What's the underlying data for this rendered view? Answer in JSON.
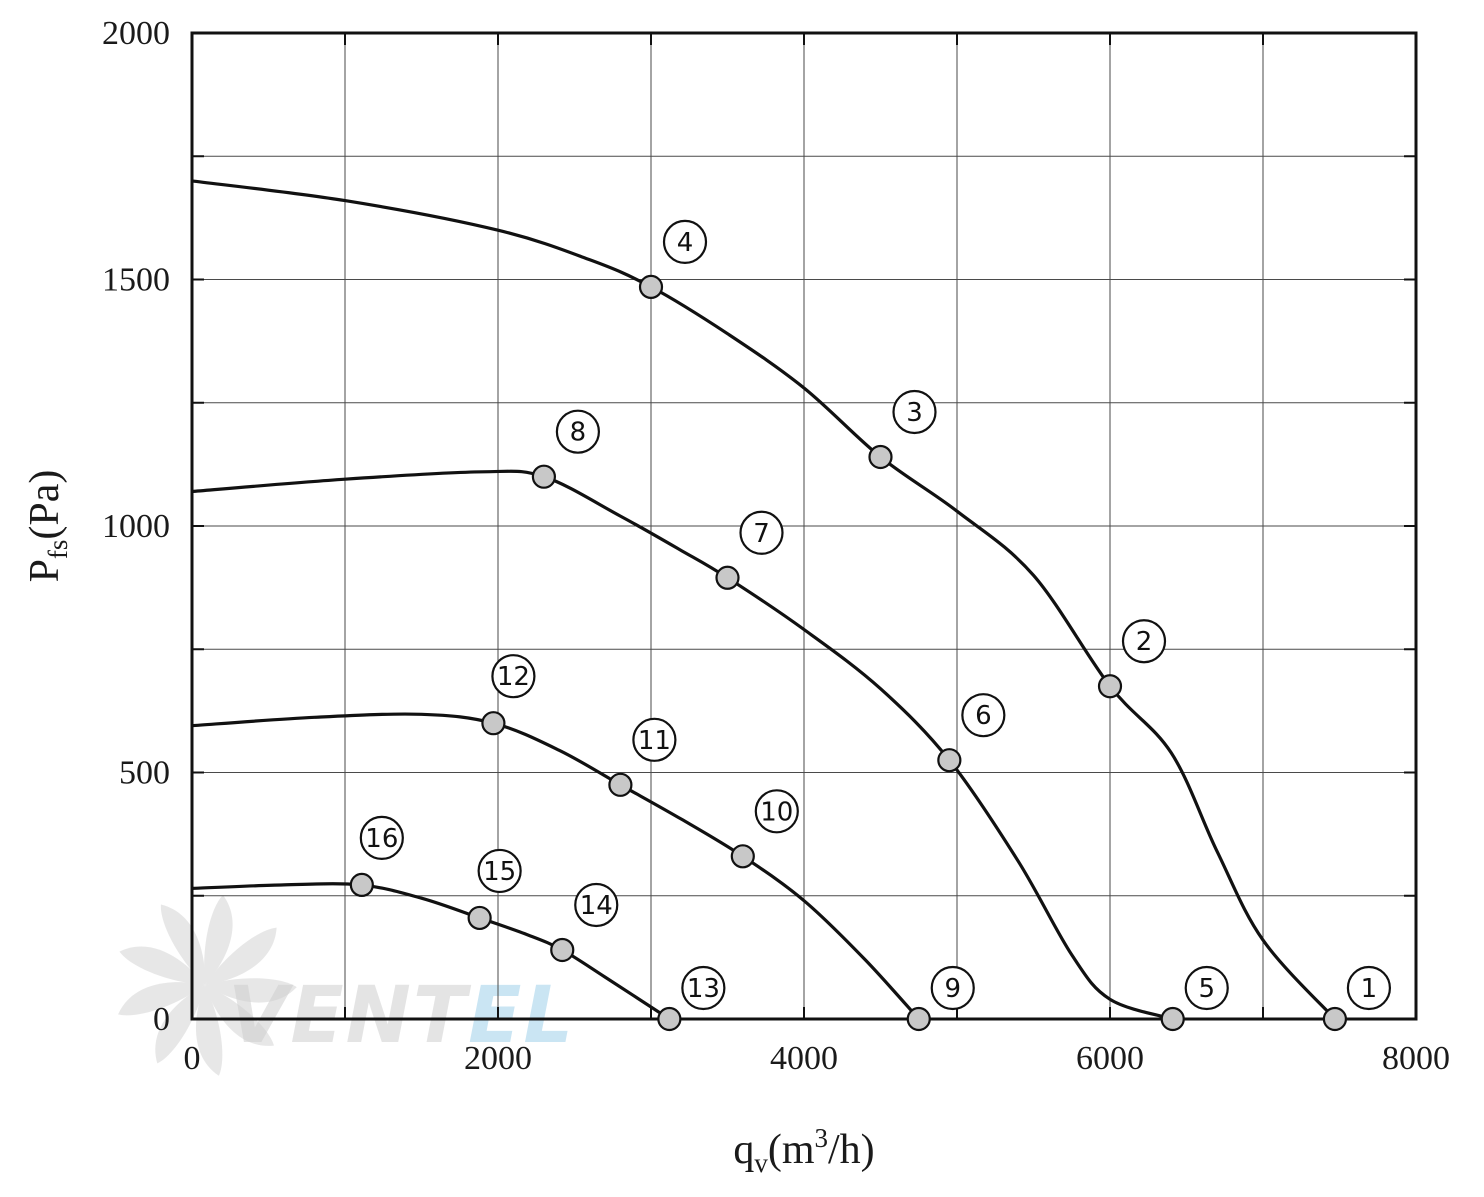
{
  "chart_data": {
    "type": "line",
    "xlabel": {
      "base": "q",
      "sub": "v",
      "unit_pre": "(m",
      "unit_sup": "3",
      "unit_post": "/h)"
    },
    "ylabel": {
      "base": "P",
      "sub": "fs",
      "unit": "(Pa)"
    },
    "xlim": [
      0,
      8000
    ],
    "ylim": [
      0,
      2000
    ],
    "x_ticks": [
      0,
      2000,
      4000,
      6000,
      8000
    ],
    "y_ticks": [
      0,
      500,
      1000,
      1500,
      2000
    ],
    "x_minor_grid": [
      1000,
      3000,
      5000,
      7000
    ],
    "y_minor_grid": [
      250,
      750,
      1250,
      1750
    ],
    "grid": true,
    "legend": "none",
    "series": [
      {
        "curve": [
          [
            0,
            1700
          ],
          [
            1000,
            1660
          ],
          [
            2000,
            1600
          ],
          [
            2600,
            1540
          ],
          [
            3000,
            1485
          ],
          [
            3500,
            1390
          ],
          [
            4000,
            1280
          ],
          [
            4500,
            1140
          ],
          [
            5000,
            1030
          ],
          [
            5500,
            900
          ],
          [
            6000,
            675
          ],
          [
            6400,
            540
          ],
          [
            6700,
            340
          ],
          [
            7000,
            160
          ],
          [
            7470,
            0
          ]
        ],
        "points": [
          {
            "label": "1",
            "x": 7470,
            "y": 0,
            "dir": "ne"
          },
          {
            "label": "2",
            "x": 6000,
            "y": 675,
            "dir": "ne"
          },
          {
            "label": "3",
            "x": 4500,
            "y": 1140,
            "dir": "ne"
          },
          {
            "label": "4",
            "x": 3000,
            "y": 1485,
            "dir": "ne"
          }
        ]
      },
      {
        "curve": [
          [
            0,
            1070
          ],
          [
            1000,
            1095
          ],
          [
            1900,
            1110
          ],
          [
            2300,
            1100
          ],
          [
            2800,
            1020
          ],
          [
            3200,
            950
          ],
          [
            3500,
            895
          ],
          [
            4000,
            790
          ],
          [
            4500,
            670
          ],
          [
            4950,
            525
          ],
          [
            5400,
            320
          ],
          [
            5750,
            130
          ],
          [
            6000,
            40
          ],
          [
            6410,
            0
          ]
        ],
        "points": [
          {
            "label": "5",
            "x": 6410,
            "y": 0,
            "dir": "ne"
          },
          {
            "label": "6",
            "x": 4950,
            "y": 525,
            "dir": "ne"
          },
          {
            "label": "7",
            "x": 3500,
            "y": 895,
            "dir": "ne"
          },
          {
            "label": "8",
            "x": 2300,
            "y": 1100,
            "dir": "ne"
          }
        ]
      },
      {
        "curve": [
          [
            0,
            595
          ],
          [
            800,
            612
          ],
          [
            1500,
            618
          ],
          [
            1970,
            600
          ],
          [
            2400,
            545
          ],
          [
            2800,
            475
          ],
          [
            3200,
            405
          ],
          [
            3600,
            330
          ],
          [
            4000,
            240
          ],
          [
            4400,
            120
          ],
          [
            4750,
            0
          ]
        ],
        "points": [
          {
            "label": "9",
            "x": 4750,
            "y": 0,
            "dir": "ne"
          },
          {
            "label": "10",
            "x": 3600,
            "y": 330,
            "dir": "ne"
          },
          {
            "label": "11",
            "x": 2800,
            "y": 475,
            "dir": "ne"
          },
          {
            "label": "12",
            "x": 1970,
            "y": 600,
            "dir": "n"
          }
        ]
      },
      {
        "curve": [
          [
            0,
            265
          ],
          [
            600,
            272
          ],
          [
            1100,
            272
          ],
          [
            1500,
            245
          ],
          [
            1880,
            205
          ],
          [
            2200,
            170
          ],
          [
            2420,
            140
          ],
          [
            2700,
            85
          ],
          [
            3120,
            0
          ]
        ],
        "points": [
          {
            "label": "13",
            "x": 3120,
            "y": 0,
            "dir": "ne"
          },
          {
            "label": "14",
            "x": 2420,
            "y": 140,
            "dir": "ne"
          },
          {
            "label": "15",
            "x": 1880,
            "y": 205,
            "dir": "n"
          },
          {
            "label": "16",
            "x": 1110,
            "y": 272,
            "dir": "n"
          }
        ]
      }
    ]
  },
  "watermark": {
    "brand": "VENTEL",
    "text_color": "#cfcfcf",
    "accent_color": "#9fd0ea"
  },
  "colors": {
    "line": "#111111",
    "marker_fill": "#c8c8c8",
    "grid": "#4a4a4a"
  }
}
